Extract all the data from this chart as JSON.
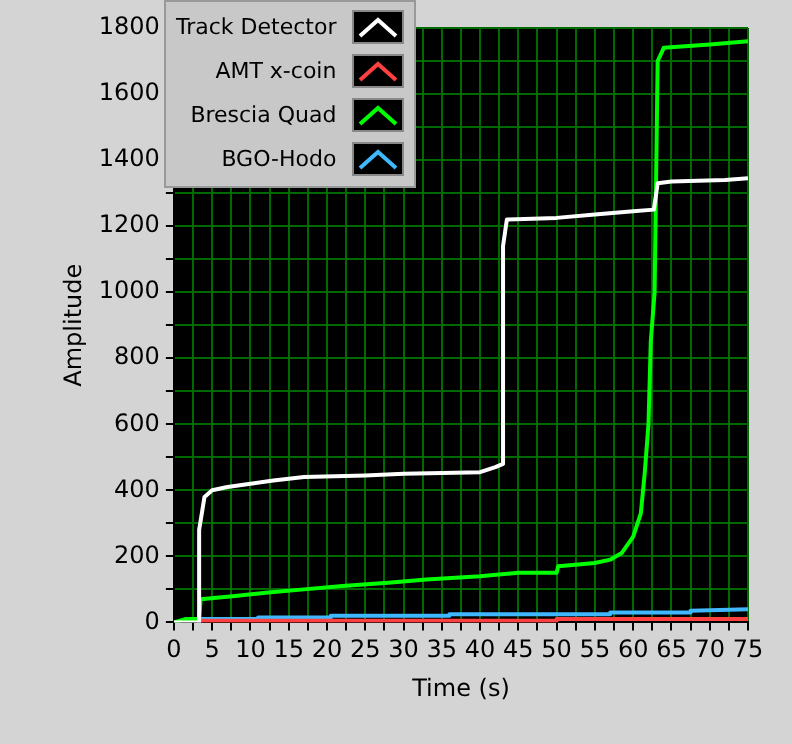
{
  "chart_data": {
    "type": "line",
    "xlabel": "Time (s)",
    "ylabel": "Amplitude",
    "xlim": [
      0,
      75
    ],
    "ylim": [
      0,
      1800
    ],
    "xticks": [
      0,
      {
        "value": 2.5,
        "label": null
      },
      5,
      {
        "value": 7.5,
        "label": null
      },
      10,
      {
        "value": 12.5,
        "label": null
      },
      15,
      {
        "value": 17.5,
        "label": null
      },
      20,
      {
        "value": 22.5,
        "label": null
      },
      25,
      {
        "value": 27.5,
        "label": null
      },
      30,
      {
        "value": 32.5,
        "label": null
      },
      35,
      {
        "value": 37.5,
        "label": null
      },
      40,
      {
        "value": 42.5,
        "label": null
      },
      45,
      {
        "value": 47.5,
        "label": null
      },
      50,
      {
        "value": 52.5,
        "label": null
      },
      55,
      {
        "value": 57.5,
        "label": null
      },
      60,
      {
        "value": 62.5,
        "label": null
      },
      65,
      {
        "value": 67.5,
        "label": null
      },
      70,
      {
        "value": 72.5,
        "label": null
      },
      75
    ],
    "yticks": [
      0,
      {
        "value": 100,
        "label": null
      },
      200,
      {
        "value": 300,
        "label": null
      },
      400,
      {
        "value": 500,
        "label": null
      },
      600,
      {
        "value": 700,
        "label": null
      },
      800,
      {
        "value": 900,
        "label": null
      },
      1000,
      {
        "value": 1100,
        "label": null
      },
      1200,
      {
        "value": 1300,
        "label": null
      },
      1400,
      {
        "value": 1500,
        "label": null
      },
      1600,
      {
        "value": 1700,
        "label": null
      },
      1800
    ],
    "grid": true,
    "legend": "top left",
    "marker": "none",
    "line_style": "solid",
    "series": [
      {
        "name": "Track Detector",
        "color": "#ffffff",
        "x": [
          0,
          3.3,
          3.3,
          4,
          5,
          7,
          10,
          13,
          17,
          25,
          30,
          40,
          42,
          43,
          43,
          43.5,
          50,
          55,
          60,
          62.7,
          63.2,
          65,
          72,
          75
        ],
        "values": [
          0,
          0,
          280,
          380,
          400,
          410,
          420,
          430,
          440,
          445,
          450,
          455,
          470,
          480,
          1140,
          1220,
          1225,
          1235,
          1245,
          1250,
          1330,
          1335,
          1340,
          1345
        ]
      },
      {
        "name": "AMT x-coin",
        "color": "#ff4040",
        "x": [
          3.3,
          3.3,
          50,
          50,
          75
        ],
        "values": [
          0,
          5,
          5,
          10,
          10
        ]
      },
      {
        "name": "Brescia Quad",
        "color": "#00ff00",
        "x": [
          0,
          1.5,
          3.3,
          3.5,
          8,
          12,
          17,
          22,
          28,
          33,
          40,
          45,
          50,
          50.2,
          55,
          57,
          58.5,
          60,
          61,
          61.5,
          62,
          62.3,
          62.8,
          63.2,
          64,
          70,
          75
        ],
        "values": [
          0,
          10,
          10,
          70,
          80,
          90,
          100,
          110,
          120,
          130,
          140,
          150,
          150,
          170,
          180,
          190,
          210,
          260,
          330,
          450,
          600,
          850,
          1000,
          1700,
          1740,
          1750,
          1760
        ]
      },
      {
        "name": "BGO-Hodo",
        "color": "#40b8ff",
        "x": [
          3.3,
          3.3,
          11,
          11,
          20.5,
          20.5,
          36,
          36,
          57,
          57,
          67.5,
          67.5,
          75
        ],
        "values": [
          0,
          10,
          10,
          15,
          15,
          20,
          20,
          25,
          25,
          30,
          30,
          35,
          40
        ]
      }
    ]
  }
}
